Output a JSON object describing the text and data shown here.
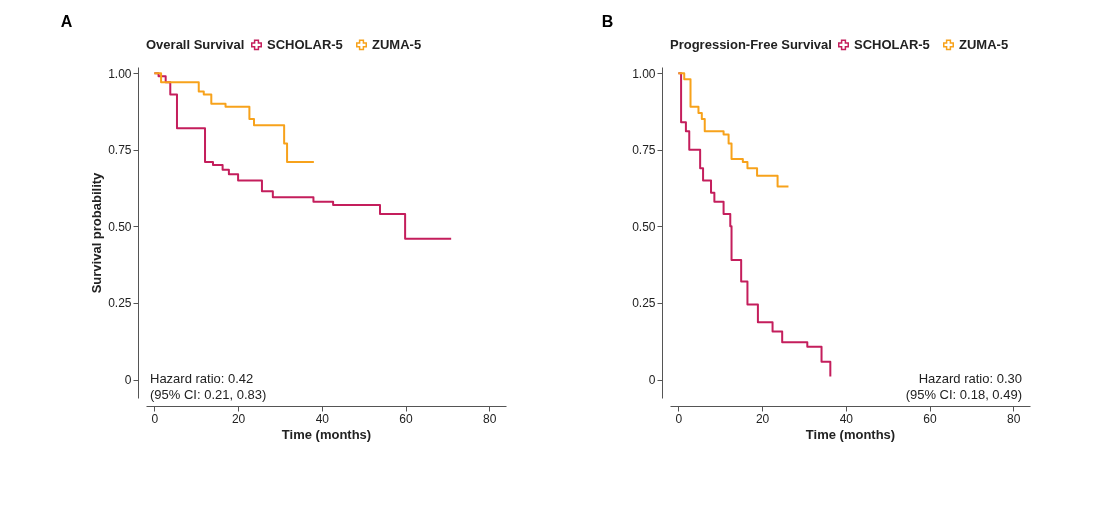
{
  "chart_data": [
    {
      "type": "step",
      "title": "A",
      "xlabel": "Time (months)",
      "ylabel": "Survival probability",
      "legend_title": "Overall Survival",
      "legend": "top",
      "grid": false,
      "xlim": [
        -2,
        84
      ],
      "ylim": [
        -0.06,
        1.02
      ],
      "xticks": [
        0,
        20,
        40,
        60,
        80
      ],
      "yticks": [
        0,
        {
          "value": 0.25,
          "label": "0.25"
        },
        {
          "value": 0.5,
          "label": "0.50"
        },
        {
          "value": 0.75,
          "label": "0.75"
        },
        {
          "value": 1,
          "label": "1.00"
        }
      ],
      "annotations": [
        "Hazard ratio: 0.42",
        "(95% CI: 0.21, 0.83)"
      ],
      "series": [
        {
          "name": "SCHOLAR-5",
          "color": "#c41e5c",
          "x": [
            0,
            1,
            2.7,
            3.8,
            5.4,
            12.1,
            14,
            16.3,
            17.8,
            20,
            25.7,
            28.3,
            38,
            42.7,
            53.9,
            59.9,
            70.9
          ],
          "values": [
            1.0,
            0.99,
            0.97,
            0.93,
            0.82,
            0.71,
            0.7,
            0.685,
            0.67,
            0.65,
            0.615,
            0.595,
            0.58,
            0.57,
            0.54,
            0.46,
            0.46
          ]
        },
        {
          "name": "ZUMA-5",
          "color": "#f7a21b",
          "x": [
            0,
            1.6,
            10.6,
            11.8,
            13.6,
            17,
            22.7,
            23.8,
            31,
            31.7,
            38.1
          ],
          "values": [
            1.0,
            0.97,
            0.94,
            0.93,
            0.9,
            0.89,
            0.85,
            0.83,
            0.77,
            0.71,
            0.71
          ]
        }
      ]
    },
    {
      "type": "step",
      "title": "B",
      "xlabel": "Time (months)",
      "legend_title": "Progression-Free Survival",
      "legend": "top",
      "grid": false,
      "xlim": [
        -2,
        84
      ],
      "ylim": [
        -0.06,
        1.02
      ],
      "xticks": [
        0,
        20,
        40,
        60,
        80
      ],
      "yticks": [
        0,
        {
          "value": 0.25,
          "label": "0.25"
        },
        {
          "value": 0.5,
          "label": "0.50"
        },
        {
          "value": 0.75,
          "label": "0.75"
        },
        {
          "value": 1,
          "label": "1.00"
        }
      ],
      "annotations": [
        "Hazard ratio: 0.30",
        "(95% CI: 0.18, 0.49)"
      ],
      "series": [
        {
          "name": "SCHOLAR-5",
          "color": "#c41e5c",
          "x": [
            0,
            0.65,
            1.8,
            2.6,
            5.2,
            5.9,
            7.8,
            8.6,
            10.8,
            12.4,
            12.7,
            15,
            16.5,
            19,
            22.5,
            24.8,
            30.8,
            34.2,
            36.3
          ],
          "values": [
            1.0,
            0.84,
            0.81,
            0.75,
            0.69,
            0.65,
            0.61,
            0.58,
            0.54,
            0.5,
            0.39,
            0.32,
            0.245,
            0.187,
            0.157,
            0.122,
            0.107,
            0.058,
            0.01
          ]
        },
        {
          "name": "ZUMA-5",
          "color": "#f7a21b",
          "x": [
            0,
            1.4,
            2.9,
            4.8,
            5.6,
            6.3,
            10.8,
            12,
            12.7,
            15.4,
            16.5,
            18.8,
            23.7,
            26.3
          ],
          "values": [
            1.0,
            0.98,
            0.89,
            0.87,
            0.85,
            0.81,
            0.8,
            0.77,
            0.72,
            0.71,
            0.69,
            0.665,
            0.63,
            0.63
          ]
        }
      ]
    }
  ]
}
